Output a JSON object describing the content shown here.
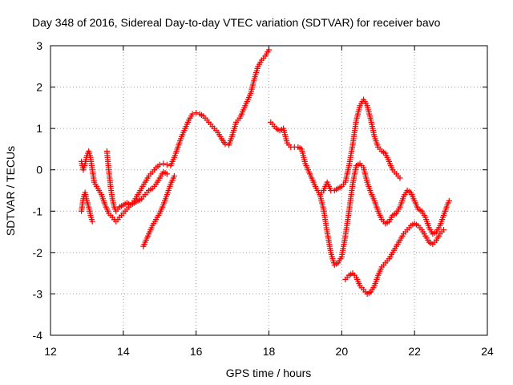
{
  "chart_data": {
    "type": "scatter",
    "title": "Day 348 of 2016, Sidereal Day-to-day VTEC variation (SDTVAR) for receiver bavo",
    "xlabel": "GPS time / hours",
    "ylabel": "SDTVAR / TECUs",
    "xlim": [
      12,
      24
    ],
    "ylim": [
      -4,
      3
    ],
    "xticks": [
      "12",
      "14",
      "16",
      "18",
      "20",
      "22",
      "24"
    ],
    "yticks": [
      "-4",
      "-3",
      "-2",
      "-1",
      "0",
      "1",
      "2",
      "3"
    ],
    "grid": true,
    "marker": "plus",
    "color": "#ff0000",
    "series": [
      {
        "x": [
          12.85,
          12.9,
          12.95,
          13.0,
          13.05,
          13.1,
          13.15,
          13.2,
          13.3,
          13.4,
          13.5,
          13.6,
          13.7,
          13.8,
          13.9,
          14.0,
          14.1,
          14.2,
          14.3,
          14.4,
          14.5,
          14.6,
          14.7,
          14.8,
          14.9,
          15.0,
          15.1,
          15.2,
          15.3,
          15.4,
          15.5,
          15.6,
          15.7,
          15.8,
          15.9,
          16.0,
          16.1,
          16.2,
          16.3,
          16.4,
          16.5,
          16.6,
          16.7,
          16.8,
          16.9,
          17.0,
          17.1,
          17.2,
          17.3,
          17.4,
          17.5,
          17.6,
          17.7,
          17.8,
          17.9,
          18.0
        ],
        "y": [
          0.2,
          0.0,
          0.15,
          0.35,
          0.45,
          0.3,
          0.0,
          -0.3,
          -0.45,
          -0.6,
          -0.85,
          -1.05,
          -1.15,
          -1.25,
          -1.15,
          -1.05,
          -0.95,
          -0.85,
          -0.75,
          -0.6,
          -0.45,
          -0.3,
          -0.15,
          -0.05,
          0.05,
          0.12,
          0.15,
          0.12,
          0.1,
          0.3,
          0.55,
          0.8,
          1.0,
          1.2,
          1.35,
          1.38,
          1.35,
          1.3,
          1.2,
          1.1,
          1.0,
          0.9,
          0.75,
          0.62,
          0.6,
          0.85,
          1.15,
          1.25,
          1.45,
          1.65,
          1.85,
          2.2,
          2.5,
          2.65,
          2.75,
          2.9
        ]
      },
      {
        "x": [
          12.85,
          12.9,
          12.95,
          13.0,
          13.05,
          13.1,
          13.15
        ],
        "y": [
          -1.0,
          -0.7,
          -0.55,
          -0.75,
          -0.9,
          -1.1,
          -1.25
        ]
      },
      {
        "x": [
          13.55,
          13.6,
          13.65,
          13.7,
          13.75,
          13.8,
          13.85,
          13.9,
          14.0,
          14.1,
          14.2,
          14.3,
          14.4,
          14.5,
          14.6,
          14.7,
          14.8,
          14.9,
          15.0,
          15.1,
          15.2
        ],
        "y": [
          0.45,
          0.0,
          -0.4,
          -0.7,
          -0.9,
          -1.0,
          -0.95,
          -0.9,
          -0.85,
          -0.8,
          -0.85,
          -0.8,
          -0.75,
          -0.7,
          -0.6,
          -0.5,
          -0.45,
          -0.35,
          -0.2,
          -0.05,
          -0.1
        ]
      },
      {
        "x": [
          14.55,
          14.6,
          14.7,
          14.8,
          14.9,
          15.0,
          15.1,
          15.2,
          15.3,
          15.4
        ],
        "y": [
          -1.85,
          -1.75,
          -1.55,
          -1.35,
          -1.2,
          -1.05,
          -0.85,
          -0.6,
          -0.35,
          -0.15
        ]
      },
      {
        "x": [
          18.05,
          18.1,
          18.2,
          18.3,
          18.4,
          18.5,
          18.6,
          18.7,
          18.8,
          18.9,
          19.0,
          19.1,
          19.2,
          19.3,
          19.4,
          19.5,
          19.6,
          19.7,
          19.8,
          19.9,
          20.0,
          20.1,
          20.2,
          20.3,
          20.4,
          20.5,
          20.6,
          20.7,
          20.8,
          20.9,
          21.0,
          21.1,
          21.2,
          21.3,
          21.4,
          21.5,
          21.6
        ],
        "y": [
          1.15,
          1.1,
          1.0,
          0.95,
          1.0,
          0.65,
          0.55,
          0.55,
          0.55,
          0.5,
          0.15,
          -0.05,
          -0.25,
          -0.45,
          -0.6,
          -0.5,
          -0.3,
          -0.5,
          -0.5,
          -0.45,
          -0.4,
          -0.3,
          0.1,
          0.6,
          1.2,
          1.55,
          1.7,
          1.55,
          1.2,
          0.8,
          0.55,
          0.45,
          0.4,
          0.2,
          0.0,
          -0.1,
          -0.2
        ]
      },
      {
        "x": [
          19.4,
          19.5,
          19.6,
          19.7,
          19.8,
          19.9,
          20.0,
          20.1,
          20.2,
          20.3,
          20.4,
          20.5,
          20.6,
          20.7,
          20.8,
          20.9,
          21.0,
          21.1,
          21.2,
          21.3,
          21.4,
          21.5,
          21.6,
          21.7,
          21.8,
          21.9,
          22.0,
          22.1,
          22.2,
          22.3,
          22.4,
          22.5,
          22.6,
          22.7,
          22.8,
          22.9,
          22.95
        ],
        "y": [
          -0.6,
          -0.95,
          -1.5,
          -2.0,
          -2.3,
          -2.25,
          -2.1,
          -1.6,
          -1.0,
          -0.35,
          0.1,
          0.15,
          0.05,
          -0.3,
          -0.55,
          -0.75,
          -1.0,
          -1.2,
          -1.3,
          -1.25,
          -1.1,
          -1.05,
          -0.9,
          -0.65,
          -0.5,
          -0.55,
          -0.75,
          -0.95,
          -1.0,
          -1.15,
          -1.4,
          -1.55,
          -1.5,
          -1.35,
          -1.1,
          -0.85,
          -0.75
        ]
      },
      {
        "x": [
          20.1,
          20.2,
          20.3,
          20.4,
          20.5,
          20.6,
          20.7,
          20.8,
          20.9,
          21.0,
          21.1,
          21.2,
          21.3,
          21.4,
          21.5,
          21.6,
          21.7,
          21.8,
          21.9,
          22.0,
          22.1,
          22.2,
          22.3,
          22.4,
          22.5,
          22.6,
          22.7,
          22.8
        ],
        "y": [
          -2.65,
          -2.55,
          -2.5,
          -2.6,
          -2.8,
          -2.9,
          -3.0,
          -2.95,
          -2.8,
          -2.55,
          -2.35,
          -2.25,
          -2.15,
          -2.0,
          -1.85,
          -1.7,
          -1.55,
          -1.45,
          -1.35,
          -1.3,
          -1.35,
          -1.45,
          -1.6,
          -1.75,
          -1.8,
          -1.7,
          -1.55,
          -1.45
        ]
      }
    ]
  }
}
